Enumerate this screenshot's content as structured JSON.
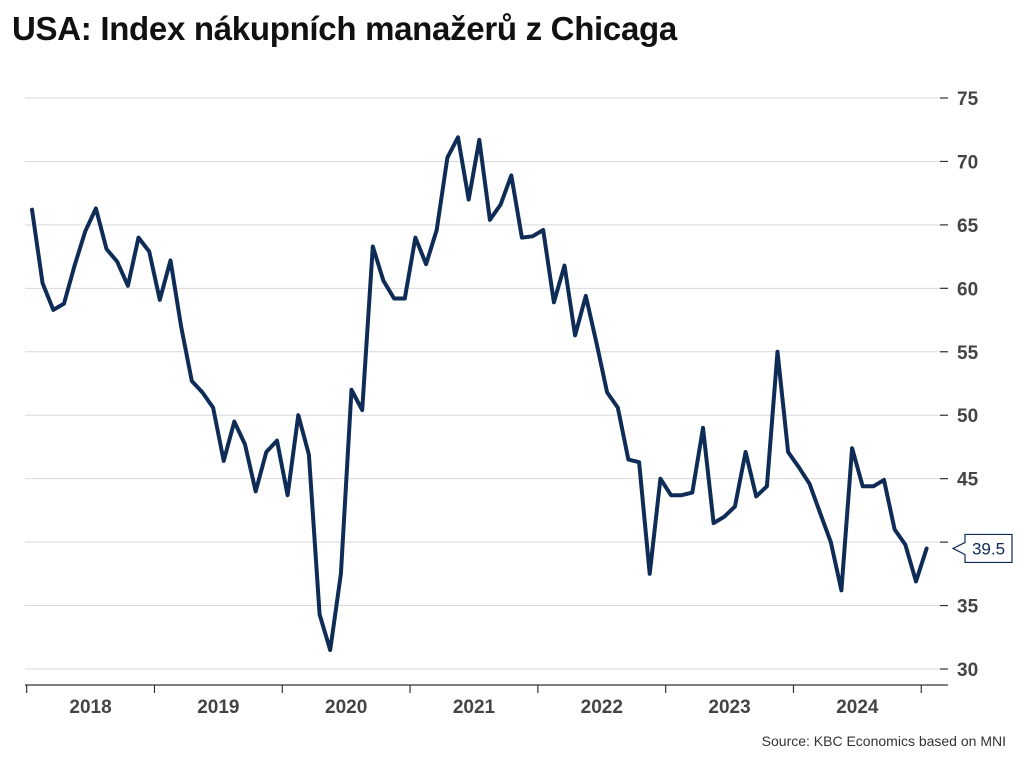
{
  "title": "USA: Index nákupních manažerů z Chicaga",
  "source": "Source: KBC Economics based on MNI",
  "chart_data": {
    "type": "line",
    "title": "USA: Index nákupních manažerů z Chicaga",
    "xlabel": "",
    "ylabel": "",
    "ylim": [
      30,
      75
    ],
    "yticks": [
      30,
      35,
      40,
      45,
      50,
      55,
      60,
      65,
      70,
      75
    ],
    "ytick_labels": [
      "30",
      "35",
      "",
      "45",
      "50",
      "55",
      "60",
      "65",
      "70",
      "75"
    ],
    "y_axis_position": "right",
    "grid": true,
    "x_tick_labels": [
      "2018",
      "2019",
      "2020",
      "2021",
      "2022",
      "2023",
      "2024"
    ],
    "x_start": "2018-01",
    "last_value_label": "39.5",
    "series": [
      {
        "color": "#0f2c56",
        "values": [
          66.2,
          60.4,
          58.3,
          58.8,
          61.8,
          64.5,
          66.3,
          63.1,
          62.1,
          60.2,
          64.0,
          62.9,
          59.1,
          62.2,
          57.0,
          52.7,
          51.8,
          50.6,
          46.4,
          49.5,
          47.7,
          44.0,
          47.1,
          48.0,
          43.7,
          50.0,
          46.9,
          34.3,
          31.5,
          37.5,
          52.0,
          50.4,
          63.3,
          60.6,
          59.2,
          59.2,
          64.0,
          61.9,
          64.6,
          70.3,
          71.9,
          67.0,
          71.7,
          65.4,
          66.6,
          68.9,
          64.0,
          64.1,
          64.6,
          58.9,
          61.8,
          56.3,
          59.4,
          55.7,
          51.8,
          50.6,
          46.5,
          46.3,
          37.5,
          45.0,
          43.7,
          43.7,
          43.9,
          49.0,
          41.5,
          42.0,
          42.8,
          47.1,
          43.6,
          44.4,
          55.0,
          47.1,
          45.9,
          44.6,
          42.3,
          40.0,
          36.2,
          47.4,
          44.4,
          44.4,
          44.9,
          41.0,
          39.8,
          36.9,
          39.5
        ]
      }
    ]
  }
}
